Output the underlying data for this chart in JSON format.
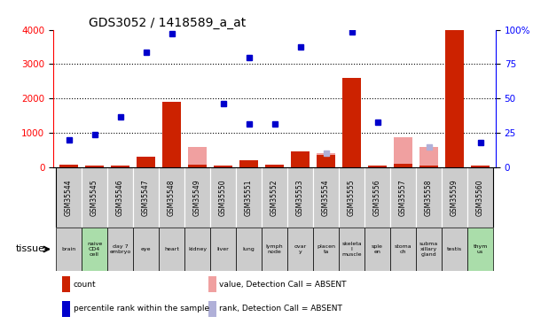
{
  "title": "GDS3052 / 1418589_a_at",
  "samples": [
    "GSM35544",
    "GSM35545",
    "GSM35546",
    "GSM35547",
    "GSM35548",
    "GSM35549",
    "GSM35550",
    "GSM35551",
    "GSM35552",
    "GSM35553",
    "GSM35554",
    "GSM35555",
    "GSM35556",
    "GSM35557",
    "GSM35558",
    "GSM35559",
    "GSM35560"
  ],
  "tissues": [
    "brain",
    "naive\nCD4\ncell",
    "day 7\nembryо",
    "eye",
    "heart",
    "kidney",
    "liver",
    "lung",
    "lymph\nnode",
    "ovar\ny",
    "placen\nta",
    "skeleta\nl\nmuscle",
    "sple\nen",
    "stoma\nch",
    "subma\nxillary\ngland",
    "testis",
    "thym\nus"
  ],
  "tissue_green": [
    false,
    true,
    false,
    false,
    false,
    false,
    false,
    false,
    false,
    false,
    false,
    false,
    false,
    false,
    false,
    false,
    true
  ],
  "counts": [
    60,
    30,
    50,
    300,
    1900,
    60,
    50,
    200,
    60,
    450,
    360,
    2600,
    50,
    100,
    50,
    4000,
    50
  ],
  "ranks_present": [
    800,
    950,
    null,
    null,
    null,
    null,
    null,
    1250,
    null,
    null,
    null,
    null,
    1300,
    null,
    null,
    null,
    700
  ],
  "values_absent": [
    null,
    null,
    null,
    null,
    null,
    580,
    null,
    null,
    null,
    null,
    400,
    null,
    null,
    880,
    580,
    null,
    null
  ],
  "blue_present": [
    null,
    null,
    1450,
    3350,
    3900,
    null,
    1850,
    3200,
    1250,
    3500,
    null,
    3950,
    null,
    null,
    null,
    null,
    null
  ],
  "blue_absent": [
    null,
    null,
    null,
    null,
    null,
    null,
    null,
    null,
    null,
    null,
    400,
    null,
    null,
    null,
    580,
    null,
    null
  ],
  "ylim_left": [
    0,
    4000
  ],
  "ylim_right": [
    0,
    100
  ],
  "yticks_left": [
    0,
    1000,
    2000,
    3000,
    4000
  ],
  "yticks_right": [
    0,
    25,
    50,
    75,
    100
  ],
  "grid_lines": [
    1000,
    2000,
    3000
  ],
  "bar_color": "#cc2200",
  "blue_color": "#0000cc",
  "absent_bar_color": "#f0a0a0",
  "absent_rank_color": "#b0b0d8",
  "tissue_green_color": "#aaddaa",
  "tissue_default_color": "#cccccc",
  "sample_box_color": "#cccccc",
  "bg_color": "#ffffff"
}
